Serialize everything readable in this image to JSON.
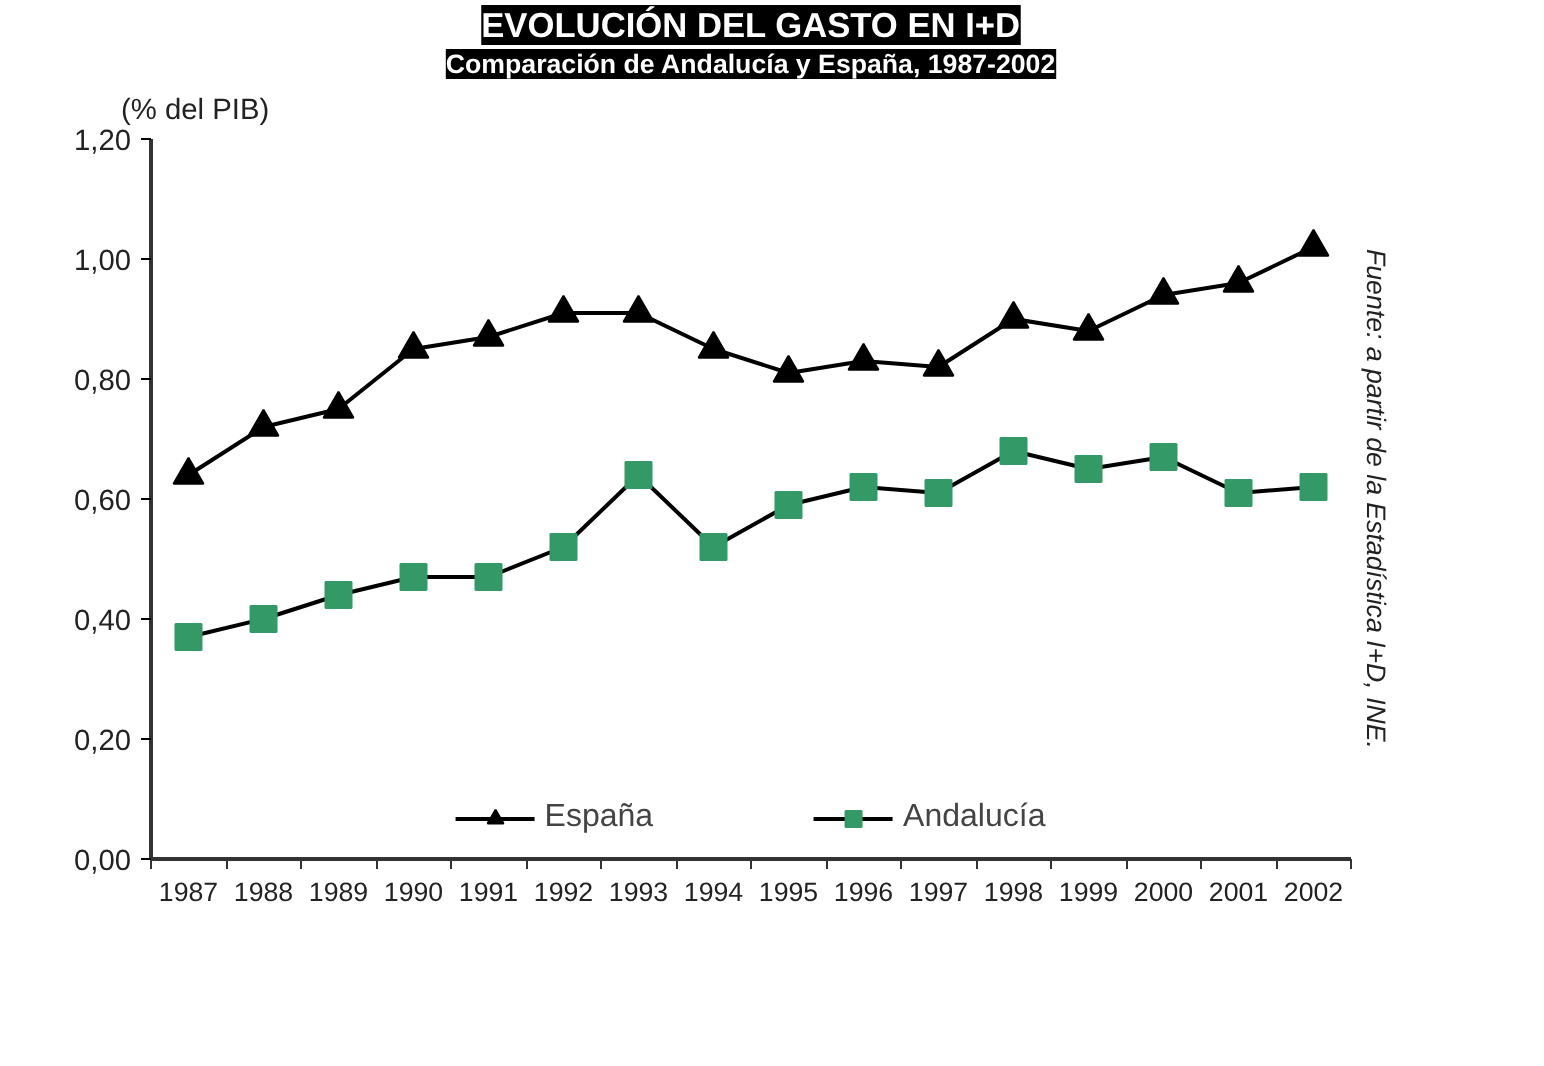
{
  "chart_data": {
    "type": "line",
    "title": "EVOLUCIÓN DEL GASTO EN I+D",
    "subtitle": "Comparación de Andalucía y España, 1987-2002",
    "ylabel": "(% del PIB)",
    "categories": [
      "1987",
      "1988",
      "1989",
      "1990",
      "1991",
      "1992",
      "1993",
      "1994",
      "1995",
      "1996",
      "1997",
      "1998",
      "1999",
      "2000",
      "2001",
      "2002"
    ],
    "series": [
      {
        "name": "España",
        "color": "#000000",
        "marker": "triangle",
        "values": [
          0.64,
          0.72,
          0.75,
          0.85,
          0.87,
          0.91,
          0.91,
          0.85,
          0.81,
          0.83,
          0.82,
          0.9,
          0.88,
          0.94,
          0.96,
          1.02
        ]
      },
      {
        "name": "Andalucía",
        "color": "#339966",
        "marker": "square",
        "values": [
          0.37,
          0.4,
          0.44,
          0.47,
          0.47,
          0.52,
          0.64,
          0.52,
          0.59,
          0.62,
          0.61,
          0.68,
          0.65,
          0.67,
          0.61,
          0.62
        ]
      }
    ],
    "ylim": [
      0,
      1.2
    ],
    "yticks": [
      {
        "value": 0,
        "label": "0,00"
      },
      {
        "value": 0.2,
        "label": "0,20"
      },
      {
        "value": 0.4,
        "label": "0,40"
      },
      {
        "value": 0.6,
        "label": "0,60"
      },
      {
        "value": 0.8,
        "label": "0,80"
      },
      {
        "value": 1.0,
        "label": "1,00"
      },
      {
        "value": 1.2,
        "label": "1,20"
      }
    ],
    "grid": false,
    "legend": "bottom",
    "line_style": "solid",
    "annotations": [
      "Fuente: a partir de la Estadística I+D, INE."
    ]
  }
}
